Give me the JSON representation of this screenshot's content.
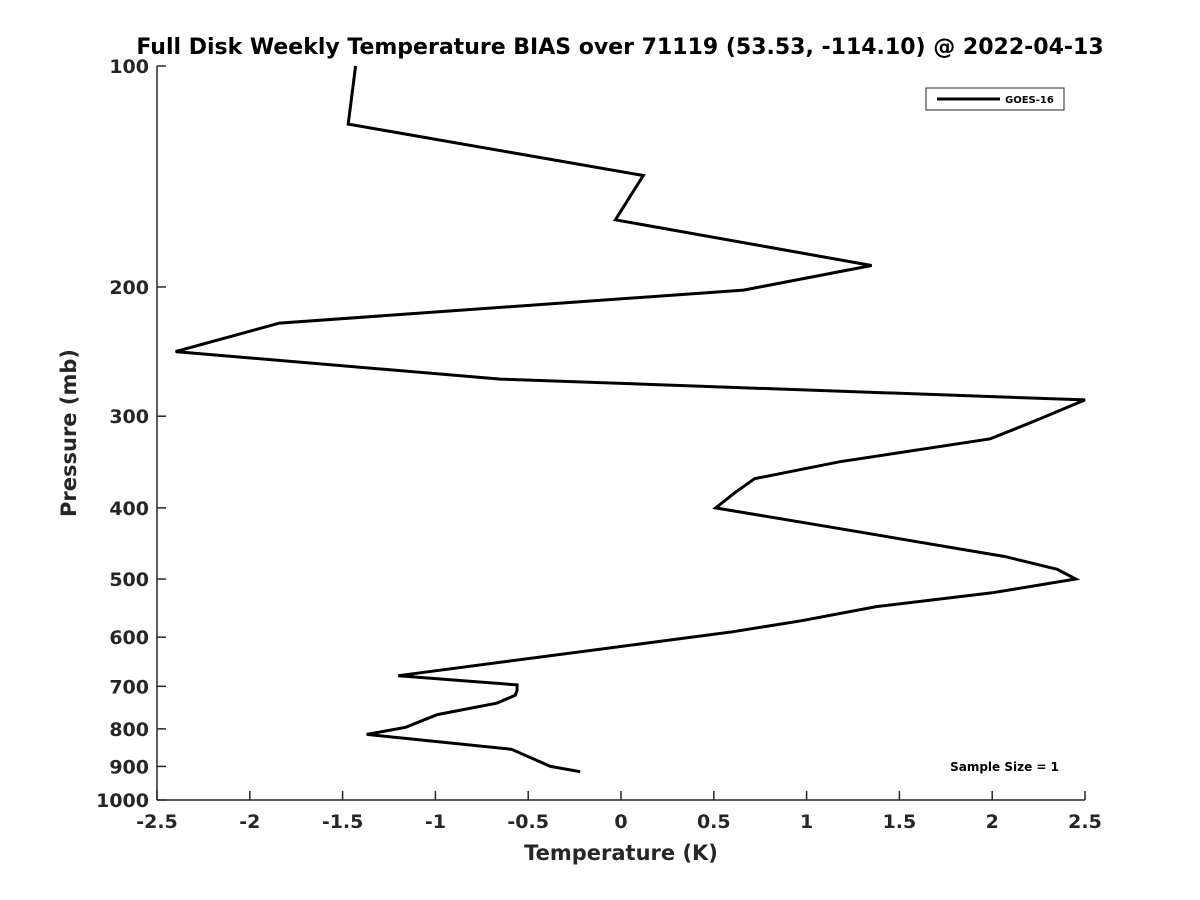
{
  "chart_data": {
    "type": "line",
    "title": "Full Disk Weekly Temperature BIAS over 71119 (53.53, -114.10) @ 2022-04-13",
    "xlabel": "Temperature (K)",
    "ylabel": "Pressure (mb)",
    "xlim": [
      -2.5,
      2.5
    ],
    "ylim": [
      100,
      1000
    ],
    "yscale": "log",
    "y_reversed": true,
    "xticks": [
      -2.5,
      -2,
      -1.5,
      -1,
      -0.5,
      0,
      0.5,
      1,
      1.5,
      2,
      2.5
    ],
    "xtick_labels": [
      "-2.5",
      "-2",
      "-1.5",
      "-1",
      "-0.5",
      "0",
      "0.5",
      "1",
      "1.5",
      "2",
      "2.5"
    ],
    "yticks": [
      100,
      200,
      300,
      400,
      500,
      600,
      700,
      800,
      900,
      1000
    ],
    "ytick_labels": [
      "100",
      "200",
      "300",
      "400",
      "500",
      "600",
      "700",
      "800",
      "900",
      "1000"
    ],
    "grid": false,
    "legend_position": "top-right",
    "annotation": "Sample Size = 1",
    "series": [
      {
        "name": "GOES-16",
        "color": "#000000",
        "x": [
          -1.43,
          -1.47,
          0.12,
          -0.03,
          1.35,
          0.66,
          -1.84,
          -2.4,
          -0.65,
          2.5,
          2.25,
          1.99,
          1.18,
          0.72,
          0.61,
          0.51,
          1.18,
          2.07,
          2.35,
          2.45,
          2.0,
          1.38,
          0.97,
          0.6,
          -1.2,
          -0.56,
          -0.56,
          -0.57,
          -0.67,
          -0.99,
          -1.16,
          -1.37,
          -0.59,
          -0.38,
          -0.22
        ],
        "y": [
          100,
          120,
          141,
          162,
          187,
          202,
          224,
          245,
          267,
          285,
          303,
          322,
          346,
          365,
          382,
          400,
          427,
          466,
          485,
          500,
          522,
          545,
          570,
          590,
          677,
          697,
          709,
          720,
          738,
          765,
          796,
          814,
          853,
          900,
          915
        ]
      }
    ]
  }
}
